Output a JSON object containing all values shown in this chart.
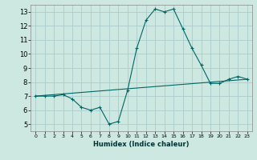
{
  "xlabel": "Humidex (Indice chaleur)",
  "bg_color": "#cce8e0",
  "grid_color": "#aacccc",
  "line_color": "#006666",
  "xlim": [
    -0.5,
    23.5
  ],
  "ylim": [
    4.5,
    13.5
  ],
  "xticks": [
    0,
    1,
    2,
    3,
    4,
    5,
    6,
    7,
    8,
    9,
    10,
    11,
    12,
    13,
    14,
    15,
    16,
    17,
    18,
    19,
    20,
    21,
    22,
    23
  ],
  "yticks": [
    5,
    6,
    7,
    8,
    9,
    10,
    11,
    12,
    13
  ],
  "curve1_x": [
    0,
    1,
    2,
    3,
    4,
    5,
    6,
    7,
    8,
    9,
    10,
    11,
    12,
    13,
    14,
    15,
    16,
    17,
    18,
    19,
    20,
    21,
    22,
    23
  ],
  "curve1_y": [
    7.0,
    7.0,
    7.0,
    7.1,
    6.8,
    6.2,
    6.0,
    6.2,
    5.0,
    5.2,
    7.4,
    10.4,
    12.4,
    13.2,
    13.0,
    13.2,
    11.8,
    10.4,
    9.2,
    7.9,
    7.9,
    8.2,
    8.4,
    8.2
  ],
  "curve2_x": [
    0,
    23
  ],
  "curve2_y": [
    7.0,
    8.2
  ]
}
